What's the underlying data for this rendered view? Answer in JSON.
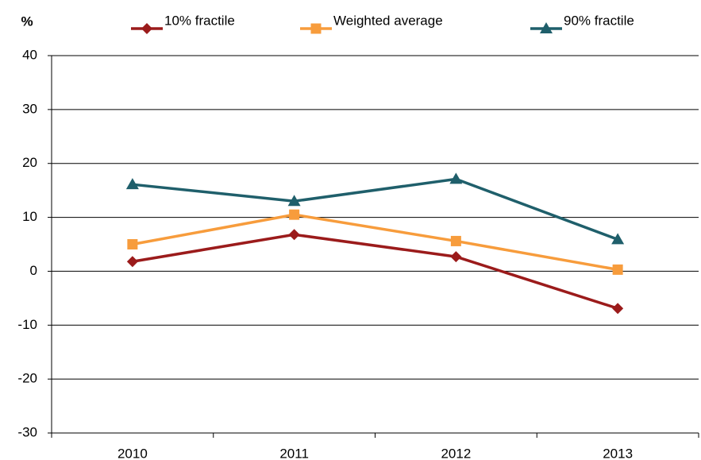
{
  "chart_data": {
    "type": "line",
    "y_label": "%",
    "categories": [
      "2010",
      "2011",
      "2012",
      "2013"
    ],
    "series": [
      {
        "name": "10% fractile",
        "color": "#9b1b1b",
        "marker": "diamond",
        "values": [
          1.8,
          6.8,
          2.7,
          -6.9
        ]
      },
      {
        "name": "Weighted average",
        "color": "#f79c3c",
        "marker": "square",
        "values": [
          5.0,
          10.5,
          5.6,
          0.3
        ]
      },
      {
        "name": "90% fractile",
        "color": "#1f5f6b",
        "marker": "triangle",
        "values": [
          16.1,
          13.0,
          17.1,
          5.9
        ]
      }
    ],
    "ylim": [
      -30,
      40
    ],
    "yticks": [
      -30,
      -20,
      -10,
      0,
      10,
      20,
      30,
      40
    ],
    "grid": true,
    "legend": "top"
  }
}
